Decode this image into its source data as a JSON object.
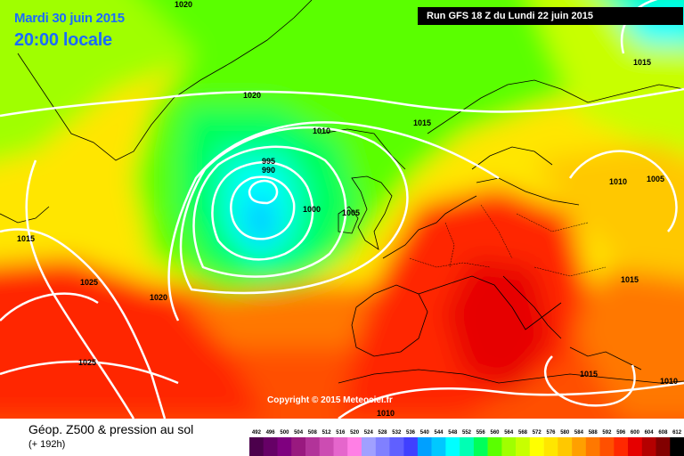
{
  "header": {
    "date": "Mardi 30 juin 2015",
    "time": "20:00 locale",
    "run": "Run GFS 18 Z du Lundi 22 juin 2015"
  },
  "footer": {
    "title": "Géop. Z500 & pression au sol",
    "subtitle": "(+ 192h)",
    "copyright": "Copyright © 2015 Meteociel.fr"
  },
  "isobar_labels": [
    "1020",
    "1020",
    "1015",
    "1010",
    "1015",
    "995",
    "990",
    "1000",
    "1005",
    "1010",
    "1005",
    "1015",
    "1025",
    "1020",
    "1015",
    "1025",
    "1010",
    "1015",
    "1010"
  ],
  "legend": {
    "values": [
      "492",
      "496",
      "500",
      "504",
      "508",
      "512",
      "516",
      "520",
      "524",
      "528",
      "532",
      "536",
      "540",
      "544",
      "548",
      "552",
      "556",
      "560",
      "564",
      "568",
      "572",
      "576",
      "580",
      "584",
      "588",
      "592",
      "596",
      "600",
      "604",
      "608",
      "612"
    ],
    "colors": [
      "#4c004c",
      "#660066",
      "#7f007f",
      "#99197f",
      "#b23399",
      "#cc4cb2",
      "#e566cc",
      "#ff7fe5",
      "#a0a0ff",
      "#8080ff",
      "#6060ff",
      "#4040ff",
      "#00a0ff",
      "#00c8ff",
      "#00ffff",
      "#00ffb4",
      "#00ff5a",
      "#5aff00",
      "#a0ff00",
      "#c8ff00",
      "#ffff00",
      "#ffe600",
      "#ffc800",
      "#ffa000",
      "#ff7800",
      "#ff5000",
      "#ff2800",
      "#e60000",
      "#b40000",
      "#820000",
      "#000000"
    ]
  },
  "colors": {
    "date_text": "#1a6cff",
    "isobar": "#ffffff",
    "coast": "#000000"
  }
}
